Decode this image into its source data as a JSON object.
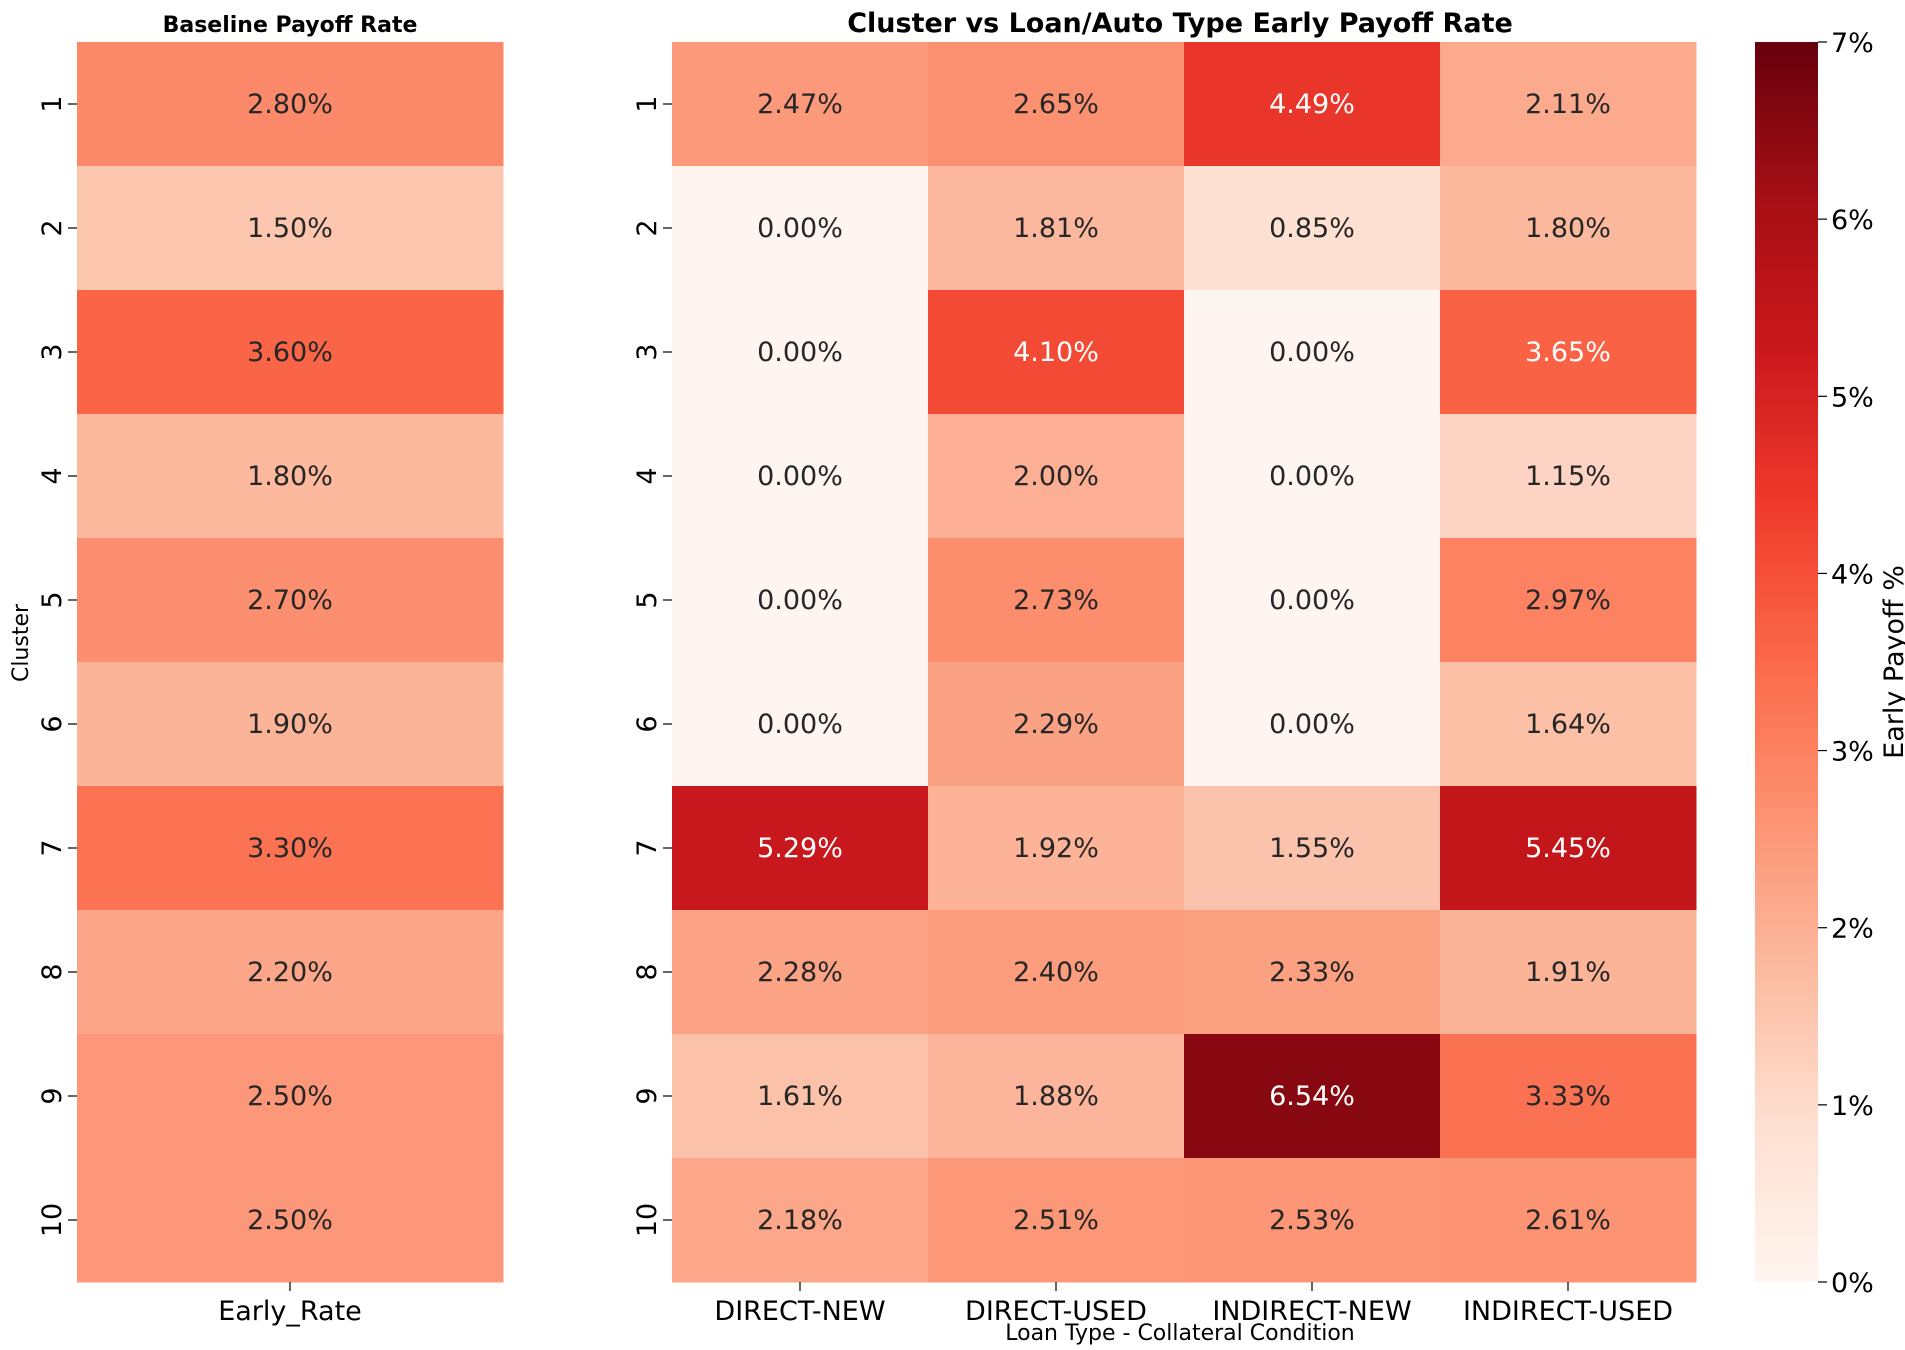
{
  "chart_data": [
    {
      "type": "heatmap",
      "title": "Baseline Payoff Rate",
      "ylabel": "Cluster",
      "xlabel": "",
      "x_categories": [
        "Early_Rate"
      ],
      "y_categories": [
        "1",
        "2",
        "3",
        "4",
        "5",
        "6",
        "7",
        "8",
        "9",
        "10"
      ],
      "values": [
        [
          2.8
        ],
        [
          1.5
        ],
        [
          3.6
        ],
        [
          1.8
        ],
        [
          2.7
        ],
        [
          1.9
        ],
        [
          3.3
        ],
        [
          2.2
        ],
        [
          2.5
        ],
        [
          2.5
        ]
      ],
      "value_format": "percent_2dp",
      "color_scale": "Reds",
      "vmin": 0,
      "vmax": 7
    },
    {
      "type": "heatmap",
      "title": "Cluster vs Loan/Auto Type Early Payoff Rate",
      "ylabel": "",
      "xlabel": "Loan Type - Collateral Condition",
      "x_categories": [
        "DIRECT-NEW",
        "DIRECT-USED",
        "INDIRECT-NEW",
        "INDIRECT-USED"
      ],
      "y_categories": [
        "1",
        "2",
        "3",
        "4",
        "5",
        "6",
        "7",
        "8",
        "9",
        "10"
      ],
      "values": [
        [
          2.47,
          2.65,
          4.49,
          2.11
        ],
        [
          0.0,
          1.81,
          0.85,
          1.8
        ],
        [
          0.0,
          4.1,
          0.0,
          3.65
        ],
        [
          0.0,
          2.0,
          0.0,
          1.15
        ],
        [
          0.0,
          2.73,
          0.0,
          2.97
        ],
        [
          0.0,
          2.29,
          0.0,
          1.64
        ],
        [
          5.29,
          1.92,
          1.55,
          5.45
        ],
        [
          2.28,
          2.4,
          2.33,
          1.91
        ],
        [
          1.61,
          1.88,
          6.54,
          3.33
        ],
        [
          2.18,
          2.51,
          2.53,
          2.61
        ]
      ],
      "value_format": "percent_2dp",
      "color_scale": "Reds",
      "vmin": 0,
      "vmax": 7
    }
  ],
  "colorbar": {
    "label": "Early Payoff %",
    "ticks": [
      "0%",
      "1%",
      "2%",
      "3%",
      "4%",
      "5%",
      "6%",
      "7%"
    ],
    "tick_values": [
      0,
      1,
      2,
      3,
      4,
      5,
      6,
      7
    ],
    "min": 0,
    "max": 7
  },
  "colors": {
    "scale_stops": [
      "#fff5f0",
      "#fee0d2",
      "#fcbba1",
      "#fc9272",
      "#fb6a4a",
      "#ef3b2c",
      "#cb181d",
      "#a50f15",
      "#67000d"
    ],
    "text_dark": "#262626",
    "text_light": "#ffffff"
  }
}
